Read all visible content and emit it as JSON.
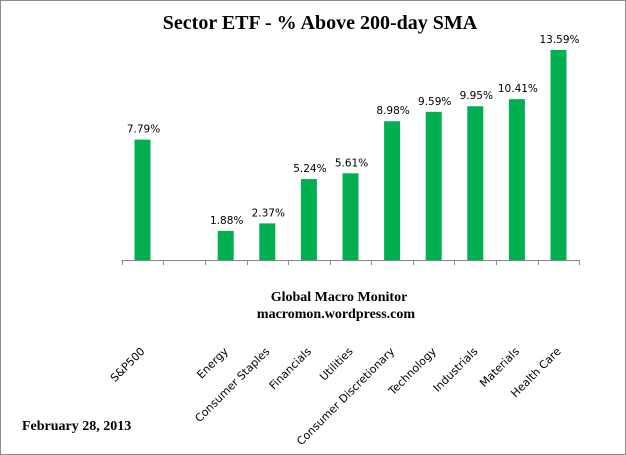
{
  "chart_data": {
    "type": "bar",
    "title": "Sector ETF - % Above 200-day SMA",
    "categories": [
      "S&P500",
      "",
      "Energy",
      "Consumer Staples",
      "Financials",
      "Utilities",
      "Consumer Discretionary",
      "Technology",
      "Industrials",
      "Materials",
      "Health Care"
    ],
    "values": [
      7.79,
      null,
      1.88,
      2.37,
      5.24,
      5.61,
      8.98,
      9.59,
      9.95,
      10.41,
      13.59
    ],
    "data_labels": [
      "7.79%",
      "",
      "1.88%",
      "2.37%",
      "5.24%",
      "5.61%",
      "8.98%",
      "9.59%",
      "9.95%",
      "10.41%",
      "13.59%"
    ],
    "xlabel": "",
    "ylabel": "",
    "ylim": [
      0,
      13.59
    ],
    "grid": false,
    "legend": "none",
    "bar_color": "#00B050",
    "annotations": [
      "Global Macro Monitor",
      "macromon.wordpress.com",
      "February 28, 2013"
    ]
  }
}
